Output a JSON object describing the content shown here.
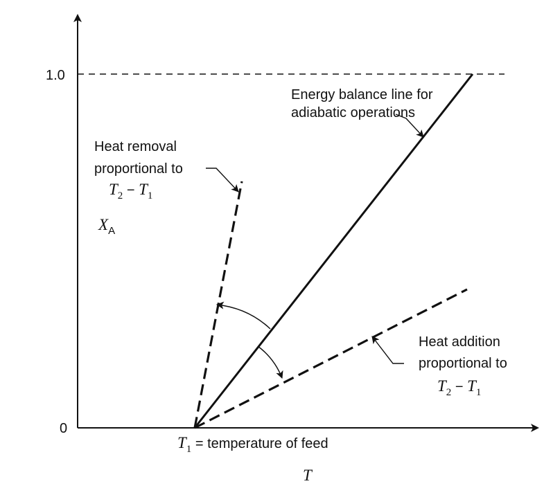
{
  "figure": {
    "y_axis": {
      "symbol": "X",
      "subscript": "A",
      "ticks": [
        "1.0",
        "0"
      ]
    },
    "x_axis": {
      "symbol": "T",
      "feed_symbol": "T",
      "feed_subscript": "1",
      "feed_text": " = temperature of feed"
    },
    "energy_balance": {
      "line1": "Energy balance line for",
      "line2": "adiabatic operations"
    },
    "heat_removal": {
      "line1": "Heat removal",
      "line2": "proportional to",
      "expr": {
        "t2": "T",
        "t2_sub": "2",
        "minus": " − ",
        "t1": "T",
        "t1_sub": "1"
      }
    },
    "heat_addition": {
      "line1": "Heat addition",
      "line2": "proportional to",
      "expr": {
        "t2": "T",
        "t2_sub": "2",
        "minus": " − ",
        "t1": "T",
        "t1_sub": "1"
      }
    }
  }
}
